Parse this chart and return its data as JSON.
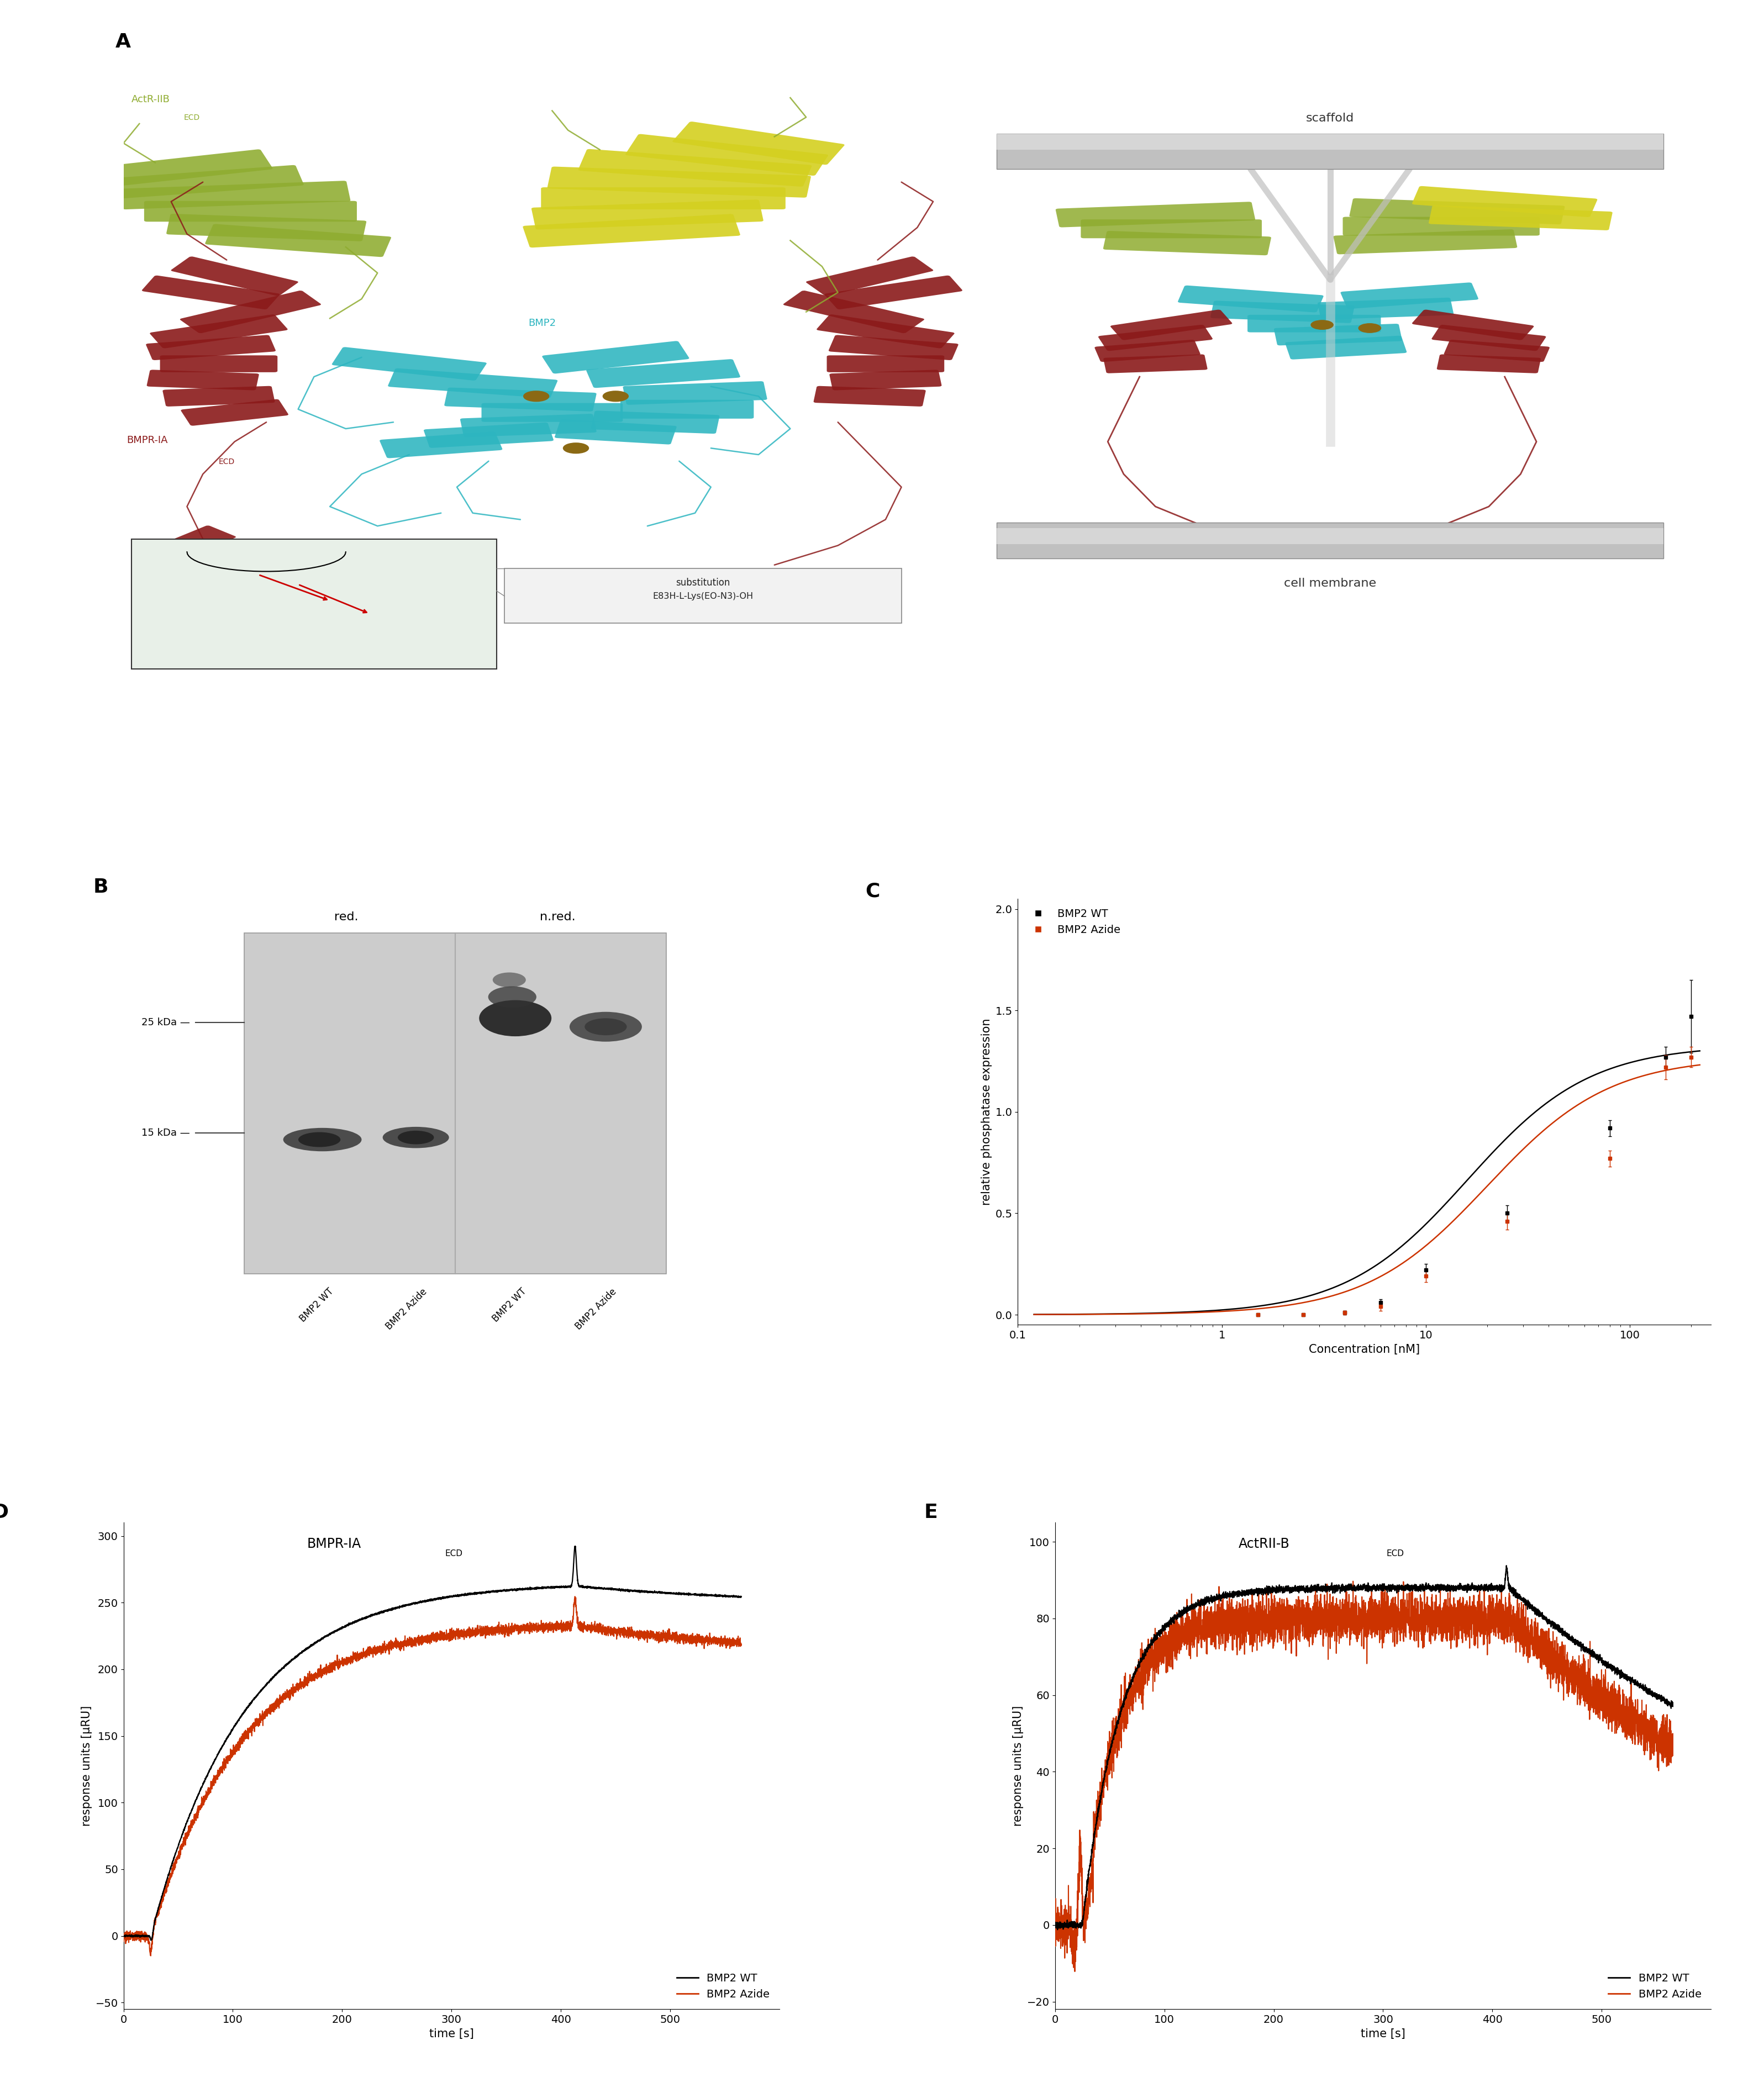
{
  "panel_label_fontsize": 26,
  "panel_label_fontweight": "bold",
  "panel_C": {
    "xlabel": "Concentration [nM]",
    "ylabel": "relative phosphatase expression",
    "wt_x": [
      1.5,
      2.5,
      4.0,
      6.0,
      10.0,
      25.0,
      80.0,
      150.0,
      200.0
    ],
    "wt_y": [
      0.0,
      0.0,
      0.01,
      0.06,
      0.22,
      0.5,
      0.92,
      1.27,
      1.47
    ],
    "wt_yerr": [
      0.005,
      0.005,
      0.01,
      0.015,
      0.03,
      0.04,
      0.04,
      0.05,
      0.18
    ],
    "azide_x": [
      1.5,
      2.5,
      4.0,
      6.0,
      10.0,
      25.0,
      80.0,
      150.0,
      200.0
    ],
    "azide_y": [
      0.0,
      0.0,
      0.01,
      0.04,
      0.19,
      0.46,
      0.77,
      1.22,
      1.27
    ],
    "azide_yerr": [
      0.005,
      0.005,
      0.01,
      0.02,
      0.03,
      0.04,
      0.04,
      0.06,
      0.05
    ],
    "wt_ec50": 16.0,
    "azide_ec50": 20.0,
    "wt_color": "#000000",
    "azide_color": "#cc3300"
  },
  "panel_D": {
    "xlabel": "time [s]",
    "ylabel": "response units [μRU]",
    "xlim": [
      0,
      600
    ],
    "ylim": [
      -55,
      310
    ],
    "yticks": [
      -50,
      0,
      50,
      100,
      150,
      200,
      250,
      300
    ],
    "xticks": [
      0,
      100,
      200,
      300,
      400,
      500
    ],
    "wt_color": "#000000",
    "azide_color": "#cc3300"
  },
  "panel_E": {
    "xlabel": "time [s]",
    "ylabel": "response units [μRU]",
    "xlim": [
      0,
      600
    ],
    "ylim": [
      -22,
      105
    ],
    "yticks": [
      -20,
      0,
      20,
      40,
      60,
      80,
      100
    ],
    "xticks": [
      0,
      100,
      200,
      300,
      400,
      500
    ],
    "wt_color": "#000000",
    "azide_color": "#cc3300"
  },
  "background_color": "#ffffff",
  "font_family": "DejaVu Sans",
  "tick_labelsize": 14,
  "axis_labelsize": 15,
  "legend_fontsize": 14
}
